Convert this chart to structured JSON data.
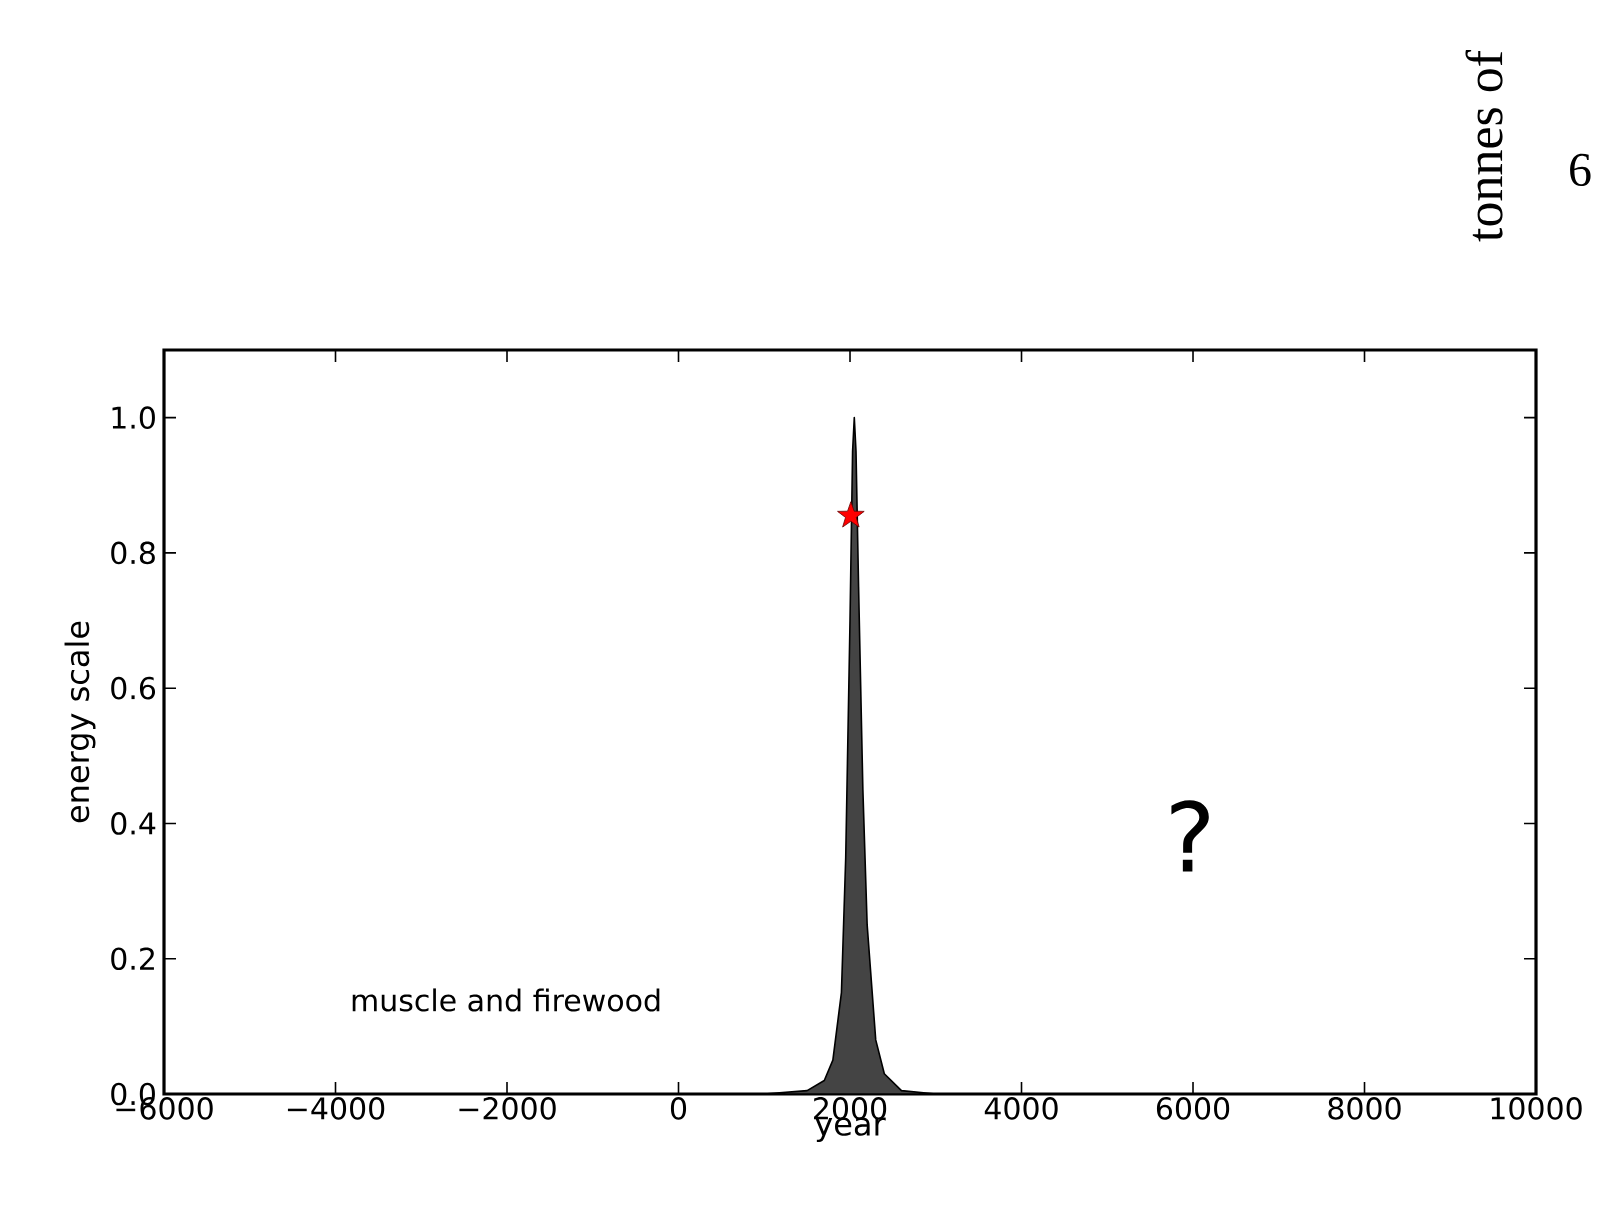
{
  "chart_data": {
    "type": "area",
    "xlabel": "year",
    "ylabel": "energy scale",
    "xlim": [
      -6000,
      10000
    ],
    "ylim": [
      0,
      1.1
    ],
    "xticks": [
      {
        "value": -6000,
        "label": "−6000"
      },
      {
        "value": -4000,
        "label": "−4000"
      },
      {
        "value": -2000,
        "label": "−2000"
      },
      0,
      2000,
      4000,
      6000,
      8000,
      10000
    ],
    "yticks": [
      {
        "value": 0,
        "label": "0.0"
      },
      {
        "value": 0.2,
        "label": "0.2"
      },
      {
        "value": 0.4,
        "label": "0.4"
      },
      {
        "value": 0.6,
        "label": "0.6"
      },
      {
        "value": 0.8,
        "label": "0.8"
      },
      {
        "value": 1.0,
        "label": "1.0"
      }
    ],
    "series": [
      {
        "color": "#444444",
        "x": [
          -6000,
          1000,
          1500,
          1700,
          1800,
          1900,
          1950,
          2000,
          2030,
          2050,
          2070,
          2100,
          2150,
          2200,
          2300,
          2400,
          2600,
          3000,
          10000
        ],
        "values": [
          0,
          0,
          0.005,
          0.02,
          0.05,
          0.15,
          0.35,
          0.7,
          0.95,
          1.0,
          0.95,
          0.75,
          0.45,
          0.25,
          0.08,
          0.03,
          0.005,
          0,
          0
        ]
      },
      {
        "type": "scatter",
        "color": "#ff0000",
        "marker": "star",
        "x": [
          2010
        ],
        "values": [
          0.855
        ]
      }
    ],
    "annotations": [
      "muscle and firewood",
      "?",
      "tonnes of",
      "6"
    ]
  }
}
